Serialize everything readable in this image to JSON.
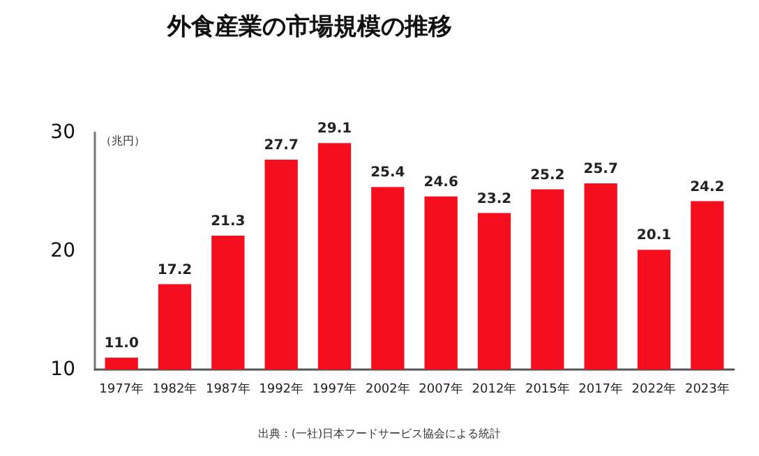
{
  "chart_data": {
    "type": "bar",
    "title": "外食産業の市場規模の推移",
    "ylabel": "（兆円）",
    "categories": [
      "1977年",
      "1982年",
      "1987年",
      "1992年",
      "1997年",
      "2002年",
      "2007年",
      "2012年",
      "2015年",
      "2017年",
      "2022年",
      "2023年"
    ],
    "values": [
      11.0,
      17.2,
      21.3,
      27.7,
      29.1,
      25.4,
      24.6,
      23.2,
      25.2,
      25.7,
      20.1,
      24.2
    ],
    "value_labels": [
      "11.0",
      "17.2",
      "21.3",
      "27.7",
      "29.1",
      "25.4",
      "24.6",
      "23.2",
      "25.2",
      "25.7",
      "20.1",
      "24.2"
    ],
    "color": "#f50f1e",
    "ylim": [
      10,
      30
    ],
    "yticks": [
      10,
      20,
      30
    ],
    "grid": false,
    "annotations": [
      "出典：(一社)日本フードサービス協会による統計"
    ]
  }
}
